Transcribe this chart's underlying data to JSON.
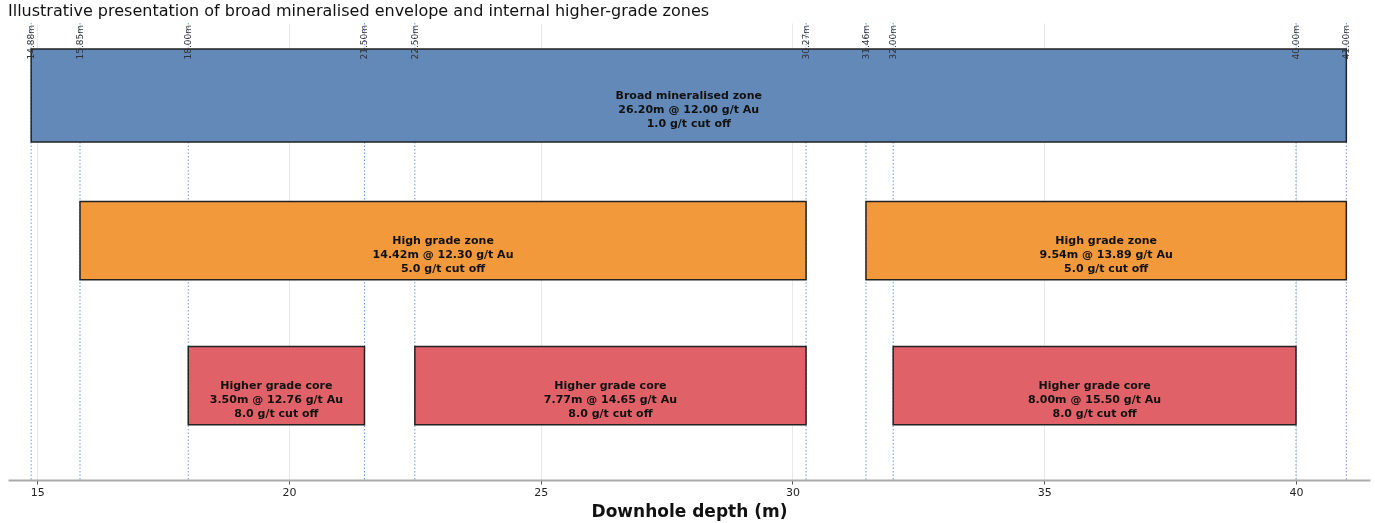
{
  "chart_data": {
    "type": "bar",
    "orientation": "horizontal",
    "title": "Illustrative presentation of broad mineralised envelope and internal higher-grade zones",
    "xlabel": "Downhole depth (m)",
    "categories": [
      null,
      null,
      null
    ],
    "series": [
      {
        "base": [
          14.88,
          15.85,
          18.0
        ],
        "values": [
          26.12,
          14.42,
          3.5
        ],
        "colors": [
          "#6389b8",
          "#f2993c",
          "#e06268"
        ],
        "value_labels": [
          "Broad mineralised zone\n26.20m @ 12.00 g/t Au\n1.0 g/t cut off",
          "High grade zone\n14.42m @ 12.30 g/t Au\n5.0 g/t cut off",
          "Higher grade core\n3.50m @ 12.76 g/t Au\n8.0 g/t cut off"
        ]
      },
      {
        "base": [
          null,
          31.46,
          22.5
        ],
        "values": [
          null,
          9.54,
          7.77
        ],
        "colors": [
          null,
          "#f2993c",
          "#e06268"
        ],
        "value_labels": [
          null,
          "High grade zone\n9.54m @ 13.89 g/t Au\n5.0 g/t cut off",
          "Higher grade core\n7.77m @ 14.65 g/t Au\n8.0 g/t cut off"
        ]
      },
      {
        "base": [
          null,
          null,
          32.0
        ],
        "values": [
          null,
          null,
          8.0
        ],
        "colors": [
          null,
          null,
          "#e06268"
        ],
        "value_labels": [
          null,
          null,
          "Higher grade core\n8.00m @ 15.50 g/t Au\n8.0 g/t cut off"
        ]
      }
    ],
    "xlim": [
      14.42,
      41.47
    ],
    "xticks": [
      15,
      20,
      25,
      30,
      35,
      40
    ],
    "grid": "x",
    "line_style": "dotted",
    "ref_lines": [
      {
        "axis": "x",
        "value": 14.88,
        "label": "14.88m",
        "color": "#6a9be0"
      },
      {
        "axis": "x",
        "value": 15.85,
        "label": "15.85m",
        "color": "#6a9be0"
      },
      {
        "axis": "x",
        "value": 18.0,
        "label": "18.00m",
        "color": "#6a9be0"
      },
      {
        "axis": "x",
        "value": 21.5,
        "label": "21.50m",
        "color": "#6a9be0"
      },
      {
        "axis": "x",
        "value": 22.5,
        "label": "22.50m",
        "color": "#6a9be0"
      },
      {
        "axis": "x",
        "value": 30.27,
        "label": "30.27m",
        "color": "#6a9be0"
      },
      {
        "axis": "x",
        "value": 31.46,
        "label": "31.46m",
        "color": "#6a9be0"
      },
      {
        "axis": "x",
        "value": 32.0,
        "label": "32.00m",
        "color": "#6a9be0"
      },
      {
        "axis": "x",
        "value": 40.0,
        "label": "40.00m",
        "color": "#6a9be0"
      },
      {
        "axis": "x",
        "value": 41.0,
        "label": "41.00m",
        "color": "#6a9be0"
      }
    ]
  }
}
